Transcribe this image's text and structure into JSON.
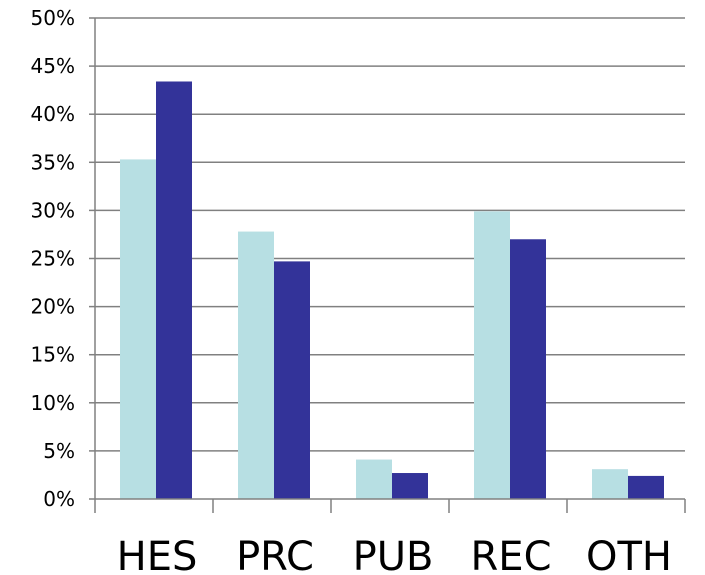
{
  "chart_data": {
    "type": "bar",
    "categories": [
      "HES",
      "PRC",
      "PUB",
      "REC",
      "OTH"
    ],
    "series": [
      {
        "values": [
          35.3,
          27.8,
          4.1,
          29.9,
          3.1
        ],
        "color": "#b7dfe3"
      },
      {
        "values": [
          43.4,
          24.7,
          2.7,
          27.0,
          2.4
        ],
        "color": "#333399"
      }
    ],
    "ylim": [
      0,
      50
    ],
    "y_ticks": [
      {
        "value": 0,
        "label": "0%"
      },
      {
        "value": 5,
        "label": "5%"
      },
      {
        "value": 10,
        "label": "10%"
      },
      {
        "value": 15,
        "label": "15%"
      },
      {
        "value": 20,
        "label": "20%"
      },
      {
        "value": 25,
        "label": "25%"
      },
      {
        "value": 30,
        "label": "30%"
      },
      {
        "value": 35,
        "label": "35%"
      },
      {
        "value": 40,
        "label": "40%"
      },
      {
        "value": 45,
        "label": "45%"
      },
      {
        "value": 50,
        "label": "50%"
      }
    ],
    "grid": true,
    "legend": "none",
    "gridline_color": "#808080",
    "axis_color": "#808080"
  }
}
